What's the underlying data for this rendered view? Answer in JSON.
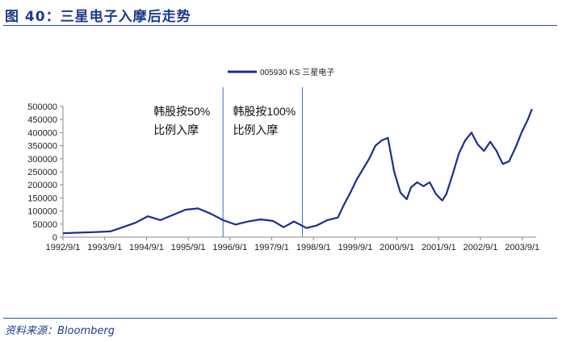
{
  "header": {
    "title": "图 40：三星电子入摩后走势"
  },
  "footer": {
    "source": "资料来源：Bloomberg"
  },
  "chart_data": {
    "type": "line",
    "title": "",
    "xlabel": "",
    "ylabel": "",
    "legend": {
      "position": "top-center",
      "entries": [
        "005930 KS 三星电子"
      ]
    },
    "series_color": "#1b2d8f",
    "x_range": [
      1992.667,
      2004.0
    ],
    "ylim": [
      0,
      500000
    ],
    "y_ticks": [
      "0",
      "50000",
      "100000",
      "150000",
      "200000",
      "250000",
      "300000",
      "350000",
      "400000",
      "450000",
      "500000"
    ],
    "x_tick_labels": [
      "1992/9/1",
      "1993/9/1",
      "1994/9/1",
      "1995/9/1",
      "1996/9/1",
      "1997/9/1",
      "1998/9/1",
      "1999/9/1",
      "2000/9/1",
      "2001/9/1",
      "2002/9/1",
      "2003/9/1"
    ],
    "x_tick_years": [
      1992.667,
      1993.667,
      1994.667,
      1995.667,
      1996.667,
      1997.667,
      1998.667,
      1999.667,
      2000.667,
      2001.667,
      2002.667,
      2003.667
    ],
    "annotations": [
      {
        "x": 1996.5,
        "line1": "韩股按50%",
        "line2": "比例入摩"
      },
      {
        "x": 1998.4,
        "line1": "韩股按100%",
        "line2": "比例入摩"
      }
    ],
    "series": [
      {
        "name": "005930 KS 三星电子",
        "x": [
          1992.67,
          1993.0,
          1993.4,
          1993.8,
          1994.1,
          1994.4,
          1994.7,
          1995.0,
          1995.3,
          1995.6,
          1995.9,
          1996.2,
          1996.5,
          1996.8,
          1997.1,
          1997.4,
          1997.7,
          1997.95,
          1998.2,
          1998.5,
          1998.75,
          1999.0,
          1999.25,
          1999.4,
          1999.55,
          1999.7,
          1999.85,
          2000.0,
          2000.15,
          2000.3,
          2000.45,
          2000.6,
          2000.75,
          2000.9,
          2001.0,
          2001.15,
          2001.3,
          2001.45,
          2001.6,
          2001.75,
          2001.85,
          2002.0,
          2002.15,
          2002.3,
          2002.45,
          2002.6,
          2002.75,
          2002.9,
          2003.05,
          2003.2,
          2003.35,
          2003.5,
          2003.65,
          2003.8,
          2003.9
        ],
        "values": [
          15000,
          17000,
          19000,
          22000,
          38000,
          55000,
          80000,
          65000,
          85000,
          105000,
          110000,
          90000,
          65000,
          48000,
          60000,
          68000,
          62000,
          38000,
          60000,
          35000,
          45000,
          65000,
          75000,
          125000,
          170000,
          220000,
          260000,
          300000,
          350000,
          370000,
          380000,
          250000,
          170000,
          145000,
          190000,
          210000,
          195000,
          210000,
          165000,
          140000,
          165000,
          240000,
          320000,
          370000,
          400000,
          355000,
          330000,
          365000,
          330000,
          280000,
          290000,
          340000,
          400000,
          450000,
          490000
        ]
      }
    ]
  }
}
